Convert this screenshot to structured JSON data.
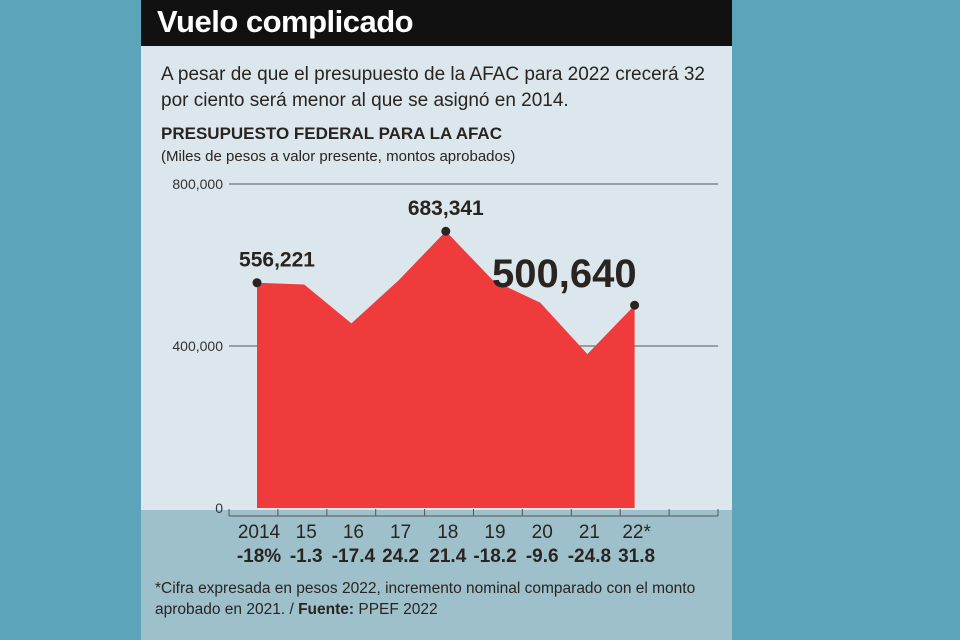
{
  "header": {
    "title": "Vuelo complicado",
    "intro": "A pesar de que el presupuesto de la AFAC para 2022 crecerá 32 por ciento será menor al que se asignó en 2014."
  },
  "chart_data": {
    "type": "area",
    "title": "PRESUPUESTO FEDERAL PARA LA AFAC",
    "subtitle": "(Miles de pesos a valor presente, montos aprobados)",
    "categories": [
      "2014",
      "15",
      "16",
      "17",
      "18",
      "19",
      "20",
      "21",
      "22*"
    ],
    "values": [
      556221,
      552000,
      456000,
      562000,
      683341,
      562000,
      507000,
      380000,
      500640
    ],
    "labeled_points": [
      {
        "index": 0,
        "label": "556,221"
      },
      {
        "index": 4,
        "label": "683,341"
      },
      {
        "index": 8,
        "label": "500,640"
      }
    ],
    "changes": [
      "-18%",
      "-1.3",
      "-17.4",
      "24.2",
      "21.4",
      "-18.2",
      "-9.6",
      "-24.8",
      "31.8"
    ],
    "yticks": [
      {
        "value": 0,
        "label": "0"
      },
      {
        "value": 400000,
        "label": "400,000"
      },
      {
        "value": 800000,
        "label": "800,000"
      }
    ],
    "ylim": [
      0,
      800000
    ],
    "grid": true,
    "colors": {
      "fill": "#ef3b3c",
      "marker": "#2a2420"
    }
  },
  "footer": {
    "note": "*Cifra expresada en pesos 2022, incremento nominal comparado con el monto aprobado en 2021. / ",
    "source_label": "Fuente:",
    "source": " PPEF 2022"
  }
}
